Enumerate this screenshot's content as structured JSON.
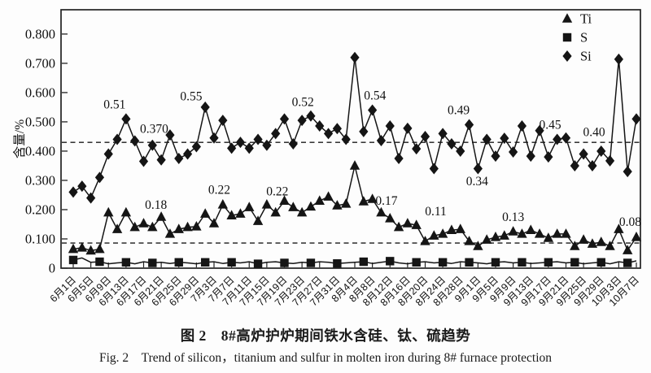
{
  "figure": {
    "caption_zh": "图 2　8#高炉护炉期间铁水含硅、钛、硫趋势",
    "caption_en": "Fig. 2　Trend of silicon，titanium and sulfur in molten iron during 8# furnace protection"
  },
  "chart_data": {
    "type": "line",
    "title": "",
    "xlabel": "",
    "ylabel": "含量/%",
    "ylim": [
      0,
      0.883
    ],
    "yticks": [
      0,
      0.1,
      0.2,
      0.3,
      0.4,
      0.5,
      0.6,
      0.7,
      0.8
    ],
    "ytick_labels": [
      "0",
      "0.100",
      "0.200",
      "0.300",
      "0.400",
      "0.500",
      "0.600",
      "0.700",
      "0.800"
    ],
    "grid": false,
    "legend_position": "top-right",
    "x_interval_days": 2,
    "tick_interval_days": 4,
    "categories": [
      "6月1日",
      "6月5日",
      "6月9日",
      "6月13日",
      "6月17日",
      "6月21日",
      "6月25日",
      "6月29日",
      "7月3日",
      "7月7日",
      "7月11日",
      "7月15日",
      "7月19日",
      "7月23日",
      "7月27日",
      "7月31日",
      "8月4日",
      "8月8日",
      "8月12日",
      "8月16日",
      "8月20日",
      "8月24日",
      "8月28日",
      "9月1日",
      "9月5日",
      "9月9日",
      "9月13日",
      "9月17日",
      "9月21日",
      "9月25日",
      "9月29日",
      "10月3日",
      "10月7日"
    ],
    "reference_lines": [
      0.43,
      0.086
    ],
    "legend": [
      {
        "label": "Ti",
        "marker": "triangle"
      },
      {
        "label": "S",
        "marker": "square"
      },
      {
        "label": "Si",
        "marker": "diamond"
      }
    ],
    "series": [
      {
        "name": "Si",
        "marker": "diamond",
        "marker_every": 1,
        "values": [
          0.26,
          0.28,
          0.24,
          0.31,
          0.39,
          0.44,
          0.51,
          0.435,
          0.365,
          0.42,
          0.37,
          0.455,
          0.375,
          0.39,
          0.415,
          0.55,
          0.445,
          0.505,
          0.41,
          0.43,
          0.41,
          0.44,
          0.42,
          0.46,
          0.51,
          0.425,
          0.505,
          0.52,
          0.486,
          0.46,
          0.477,
          0.44,
          0.72,
          0.467,
          0.54,
          0.436,
          0.486,
          0.375,
          0.478,
          0.408,
          0.45,
          0.34,
          0.46,
          0.425,
          0.4,
          0.49,
          0.34,
          0.44,
          0.383,
          0.444,
          0.397,
          0.486,
          0.383,
          0.47,
          0.38,
          0.44,
          0.445,
          0.35,
          0.39,
          0.35,
          0.4,
          0.367,
          0.714,
          0.33,
          0.51
        ]
      },
      {
        "name": "Ti",
        "marker": "triangle",
        "marker_every": 1,
        "values": [
          0.065,
          0.07,
          0.06,
          0.065,
          0.19,
          0.133,
          0.19,
          0.14,
          0.153,
          0.14,
          0.175,
          0.117,
          0.133,
          0.14,
          0.142,
          0.186,
          0.153,
          0.217,
          0.18,
          0.186,
          0.208,
          0.161,
          0.217,
          0.19,
          0.23,
          0.208,
          0.19,
          0.21,
          0.23,
          0.244,
          0.214,
          0.22,
          0.35,
          0.228,
          0.236,
          0.19,
          0.17,
          0.14,
          0.153,
          0.147,
          0.092,
          0.111,
          0.117,
          0.13,
          0.133,
          0.092,
          0.075,
          0.097,
          0.106,
          0.111,
          0.125,
          0.117,
          0.13,
          0.117,
          0.103,
          0.117,
          0.117,
          0.075,
          0.097,
          0.083,
          0.089,
          0.075,
          0.133,
          0.061,
          0.106
        ]
      },
      {
        "name": "S",
        "marker": "square",
        "marker_every": 3,
        "values": [
          0.028,
          0.035,
          0.02,
          0.022,
          0.015,
          0.018,
          0.02,
          0.015,
          0.022,
          0.018,
          0.02,
          0.016,
          0.02,
          0.018,
          0.015,
          0.02,
          0.022,
          0.016,
          0.02,
          0.018,
          0.022,
          0.015,
          0.02,
          0.022,
          0.018,
          0.016,
          0.02,
          0.018,
          0.022,
          0.02,
          0.016,
          0.018,
          0.02,
          0.022,
          0.016,
          0.02,
          0.024,
          0.018,
          0.015,
          0.02,
          0.022,
          0.018,
          0.02,
          0.016,
          0.022,
          0.02,
          0.018,
          0.015,
          0.02,
          0.022,
          0.018,
          0.02,
          0.016,
          0.018,
          0.02,
          0.022,
          0.018,
          0.02,
          0.015,
          0.018,
          0.02,
          0.015,
          0.022,
          0.018,
          0.025
        ]
      }
    ],
    "annotations": [
      {
        "series": "Si",
        "x": 4.7,
        "y": 0.561,
        "text": "0.51"
      },
      {
        "series": "Si",
        "x": 9.2,
        "y": 0.478,
        "text": "0.370"
      },
      {
        "series": "Si",
        "x": 13.4,
        "y": 0.589,
        "text": "0.55"
      },
      {
        "series": "Si",
        "x": 26.1,
        "y": 0.569,
        "text": "0.52"
      },
      {
        "series": "Si",
        "x": 34.3,
        "y": 0.592,
        "text": "0.54"
      },
      {
        "series": "Si",
        "x": 43.8,
        "y": 0.542,
        "text": "0.49"
      },
      {
        "series": "Si",
        "x": 45.9,
        "y": 0.298,
        "text": "0.34"
      },
      {
        "series": "Si",
        "x": 54.2,
        "y": 0.492,
        "text": "0.45"
      },
      {
        "series": "Si",
        "x": 59.2,
        "y": 0.467,
        "text": "0.40"
      },
      {
        "series": "Ti",
        "x": 9.4,
        "y": 0.218,
        "text": "0.18"
      },
      {
        "series": "Ti",
        "x": 16.6,
        "y": 0.27,
        "text": "0.22"
      },
      {
        "series": "Ti",
        "x": 23.2,
        "y": 0.264,
        "text": "0.22"
      },
      {
        "series": "Ti",
        "x": 35.6,
        "y": 0.232,
        "text": "0.17"
      },
      {
        "series": "Ti",
        "x": 41.2,
        "y": 0.196,
        "text": "0.11"
      },
      {
        "series": "Ti",
        "x": 50.0,
        "y": 0.176,
        "text": "0.13"
      },
      {
        "series": "Ti",
        "x": 63.3,
        "y": 0.16,
        "text": "0.08"
      }
    ],
    "colors": {
      "line": "#151515",
      "marker": "#111111",
      "axis": "#222222"
    }
  }
}
